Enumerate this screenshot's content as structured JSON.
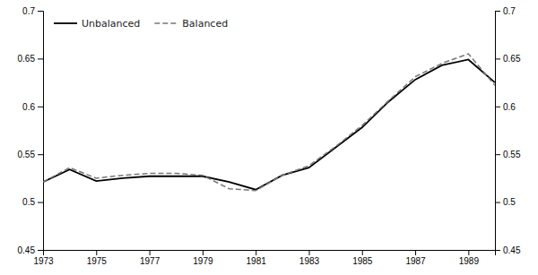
{
  "chart_data": {
    "type": "line",
    "x": [
      1973,
      1974,
      1975,
      1976,
      1977,
      1978,
      1979,
      1980,
      1981,
      1982,
      1983,
      1984,
      1985,
      1986,
      1987,
      1988,
      1989,
      1990
    ],
    "series": [
      {
        "name": "Unbalanced",
        "color": "#000000",
        "line_style": "solid",
        "values": [
          0.521,
          0.534,
          0.522,
          0.525,
          0.527,
          0.527,
          0.527,
          0.521,
          0.513,
          0.528,
          0.536,
          0.557,
          0.578,
          0.605,
          0.628,
          0.643,
          0.649,
          0.625
        ]
      },
      {
        "name": "Balanced",
        "color": "#777777",
        "line_style": "dashed",
        "values": [
          0.521,
          0.536,
          0.525,
          0.528,
          0.53,
          0.53,
          0.528,
          0.514,
          0.512,
          0.528,
          0.538,
          0.558,
          0.58,
          0.606,
          0.631,
          0.645,
          0.655,
          0.622
        ]
      }
    ],
    "xlim": [
      1973,
      1990
    ],
    "xticks": [
      1973,
      1975,
      1977,
      1979,
      1981,
      1983,
      1985,
      1987,
      1989
    ],
    "ylim": [
      0.45,
      0.7
    ],
    "yticks": [
      0.45,
      0.5,
      0.55,
      0.6,
      0.65,
      0.7
    ],
    "y2lim": [
      0.45,
      0.7
    ],
    "y2ticks": [
      0.45,
      0.5,
      0.55,
      0.6,
      0.65,
      0.7
    ],
    "grid": false,
    "legend": "upper left"
  }
}
